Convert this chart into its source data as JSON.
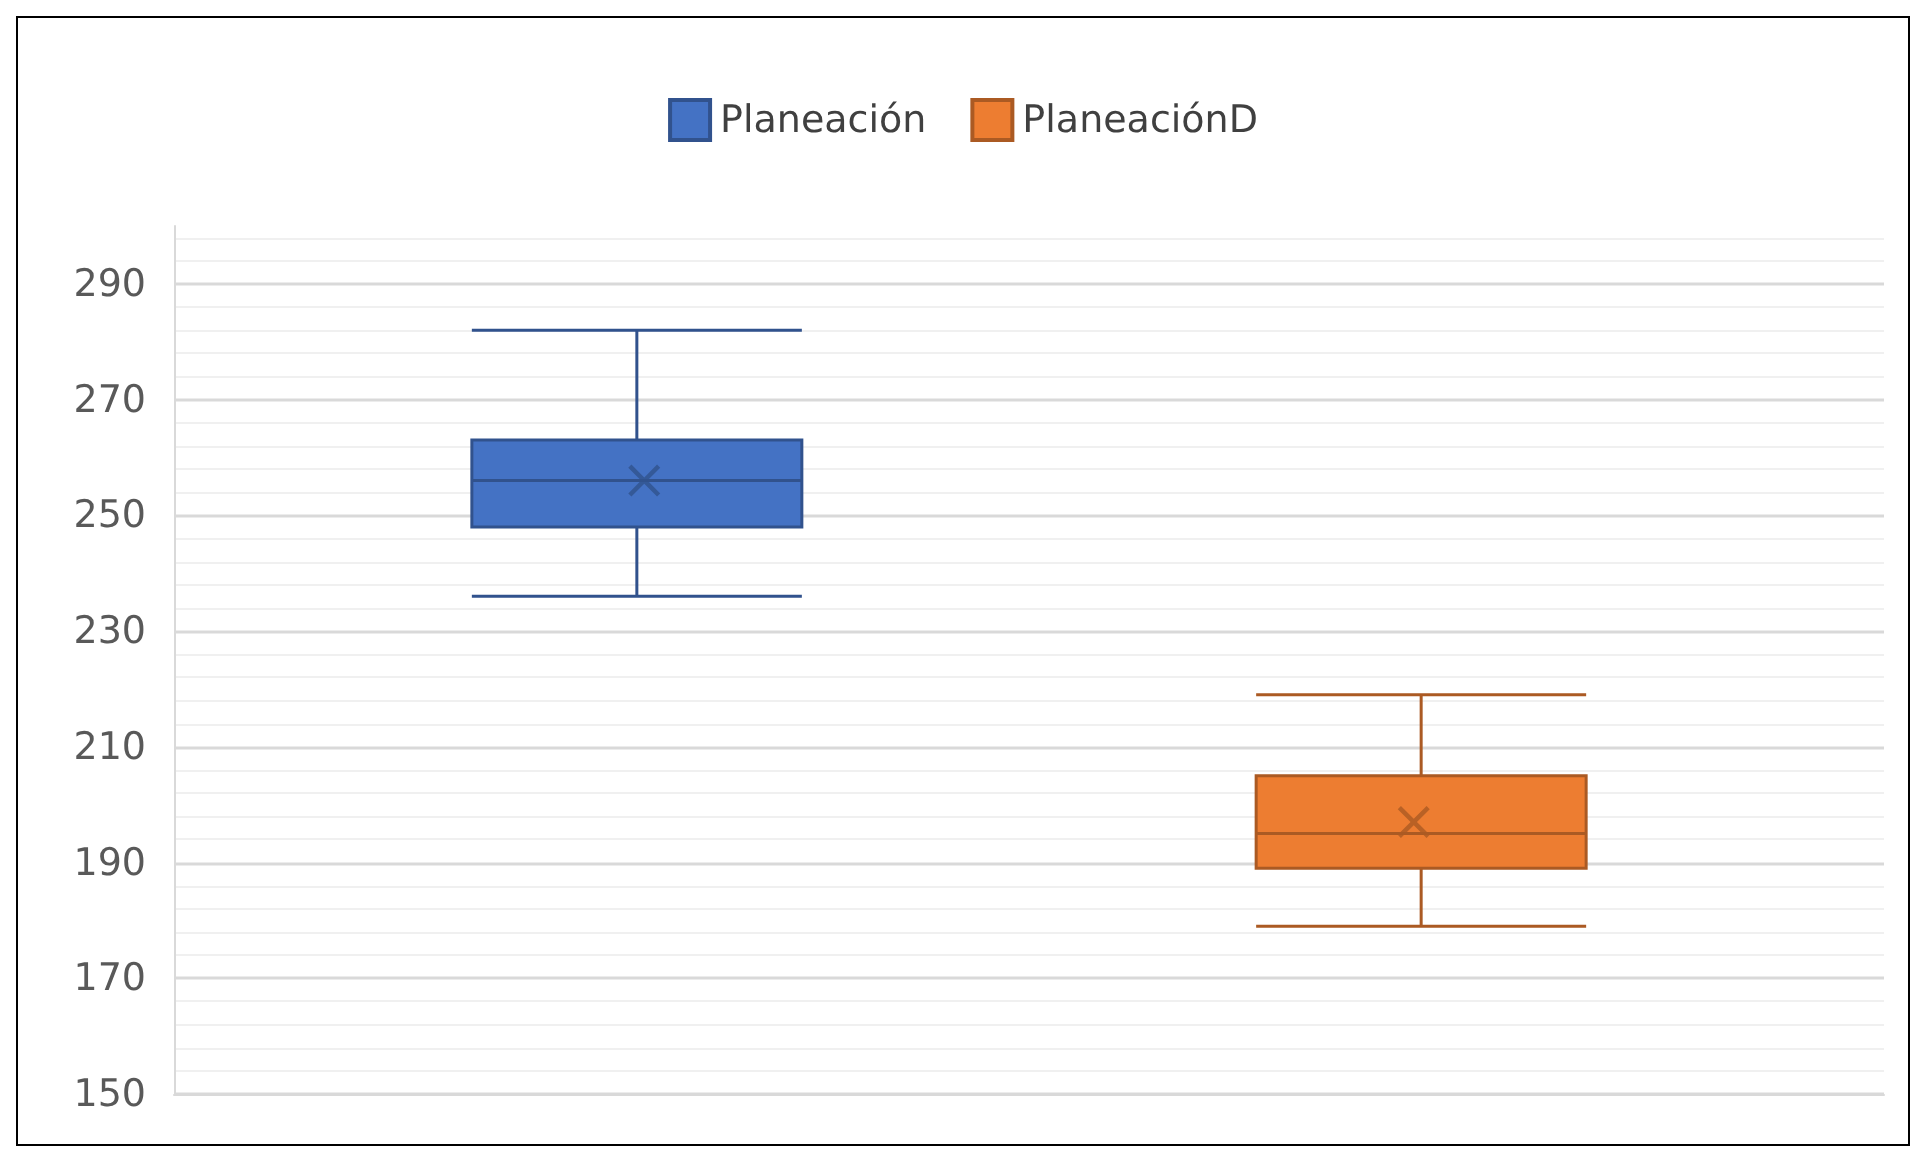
{
  "chart_data": {
    "type": "box",
    "categories": [
      null
    ],
    "legend": "top",
    "grid": "y",
    "ylim": [
      150,
      300
    ],
    "yticks": [
      150,
      170,
      190,
      210,
      230,
      250,
      270,
      290,
      {
        "value": 154,
        "label": null
      },
      {
        "value": 158,
        "label": null
      },
      {
        "value": 162,
        "label": null
      },
      {
        "value": 166,
        "label": null
      },
      {
        "value": 174,
        "label": null
      },
      {
        "value": 178,
        "label": null
      },
      {
        "value": 182,
        "label": null
      },
      {
        "value": 186,
        "label": null
      },
      {
        "value": 194,
        "label": null
      },
      {
        "value": 198,
        "label": null
      },
      {
        "value": 202,
        "label": null
      },
      {
        "value": 206,
        "label": null
      },
      {
        "value": 214,
        "label": null
      },
      {
        "value": 218,
        "label": null
      },
      {
        "value": 222,
        "label": null
      },
      {
        "value": 226,
        "label": null
      },
      {
        "value": 234,
        "label": null
      },
      {
        "value": 238,
        "label": null
      },
      {
        "value": 242,
        "label": null
      },
      {
        "value": 246,
        "label": null
      },
      {
        "value": 254,
        "label": null
      },
      {
        "value": 258,
        "label": null
      },
      {
        "value": 262,
        "label": null
      },
      {
        "value": 266,
        "label": null
      },
      {
        "value": 274,
        "label": null
      },
      {
        "value": 278,
        "label": null
      },
      {
        "value": 282,
        "label": null
      },
      {
        "value": 286,
        "label": null
      },
      {
        "value": 294,
        "label": null
      },
      {
        "value": 298,
        "label": null
      }
    ],
    "series": [
      {
        "name": "Planeación",
        "color": "#4472c4",
        "boxes": [
          {
            "low": 236,
            "q1": 248,
            "median": 256,
            "q3": 263,
            "high": 282,
            "mean": 256
          }
        ]
      },
      {
        "name": "PlaneaciónD",
        "color": "#ed7d31",
        "boxes": [
          {
            "low": 179,
            "q1": 189,
            "median": 195,
            "q3": 205,
            "high": 219,
            "mean": 197
          }
        ]
      }
    ]
  }
}
